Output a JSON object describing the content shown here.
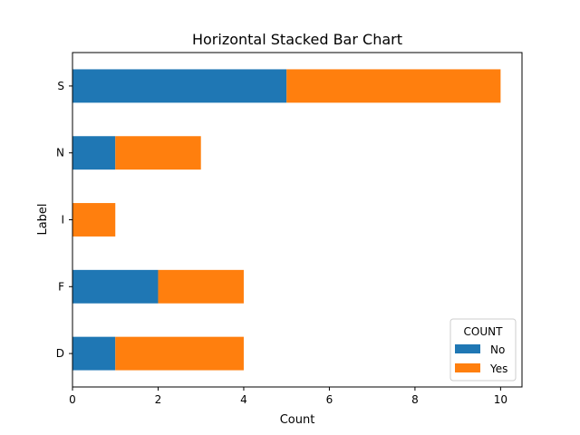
{
  "chart_data": {
    "type": "bar",
    "orientation": "horizontal",
    "stacked": true,
    "title": "Horizontal Stacked Bar Chart",
    "xlabel": "Count",
    "ylabel": "Label",
    "categories": [
      "D",
      "F",
      "I",
      "N",
      "S"
    ],
    "series": [
      {
        "name": "No",
        "values": [
          1,
          2,
          0,
          1,
          5
        ],
        "color": "#1f77b4"
      },
      {
        "name": "Yes",
        "values": [
          3,
          2,
          1,
          2,
          5
        ],
        "color": "#ff7f0e"
      }
    ],
    "xlim": [
      0,
      10.5
    ],
    "xticks": [
      0,
      2,
      4,
      6,
      8,
      10
    ],
    "grid": false,
    "legend": {
      "title": "COUNT",
      "position": "lower right"
    }
  }
}
